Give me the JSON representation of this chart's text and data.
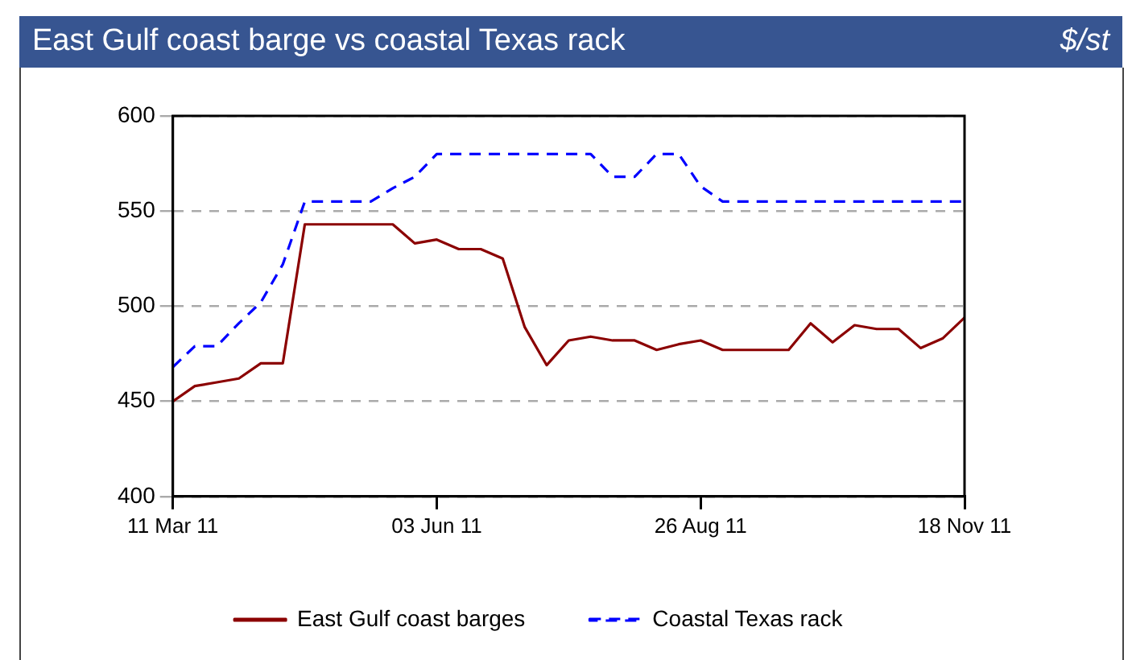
{
  "chart_data": {
    "type": "line",
    "title": "East Gulf coast barge vs coastal Texas rack",
    "ylabel": "$/st",
    "x": [
      "2011-03-11",
      "2011-03-18",
      "2011-03-25",
      "2011-04-01",
      "2011-04-08",
      "2011-04-15",
      "2011-04-22",
      "2011-04-29",
      "2011-05-06",
      "2011-05-13",
      "2011-05-20",
      "2011-05-27",
      "2011-06-03",
      "2011-06-10",
      "2011-06-17",
      "2011-06-24",
      "2011-07-01",
      "2011-07-08",
      "2011-07-15",
      "2011-07-22",
      "2011-07-29",
      "2011-08-05",
      "2011-08-12",
      "2011-08-19",
      "2011-08-26",
      "2011-09-02",
      "2011-09-09",
      "2011-09-16",
      "2011-09-23",
      "2011-09-30",
      "2011-10-07",
      "2011-10-14",
      "2011-10-21",
      "2011-10-28",
      "2011-11-04",
      "2011-11-11",
      "2011-11-18"
    ],
    "series": [
      {
        "name": "East Gulf coast barges",
        "color": "#8b0000",
        "line_style": "solid",
        "values": [
          450,
          458,
          460,
          462,
          470,
          470,
          543,
          543,
          543,
          543,
          543,
          533,
          535,
          530,
          530,
          525,
          489,
          469,
          482,
          484,
          482,
          482,
          477,
          480,
          482,
          477,
          477,
          477,
          477,
          491,
          481,
          490,
          488,
          488,
          478,
          483,
          494
        ]
      },
      {
        "name": "Coastal Texas rack",
        "color": "#0000ff",
        "line_style": "dashed",
        "values": [
          468,
          479,
          479,
          491,
          502,
          522,
          555,
          555,
          555,
          555,
          562,
          568,
          580,
          580,
          580,
          580,
          580,
          580,
          580,
          580,
          568,
          568,
          580,
          580,
          563,
          555,
          555,
          555,
          555,
          555,
          555,
          555,
          555,
          555,
          555,
          555,
          555
        ]
      }
    ],
    "xlim": [
      "2011-03-11",
      "2011-11-18"
    ],
    "xticks": [
      {
        "value": "2011-03-11",
        "label": "11 Mar 11"
      },
      {
        "value": "2011-06-03",
        "label": "03 Jun 11"
      },
      {
        "value": "2011-08-26",
        "label": "26 Aug 11"
      },
      {
        "value": "2011-11-18",
        "label": "18 Nov 11"
      }
    ],
    "ylim": [
      400,
      600
    ],
    "yticks": [
      400,
      450,
      500,
      550,
      600
    ],
    "grid": "y",
    "legend": "bottom",
    "marker": "none"
  }
}
